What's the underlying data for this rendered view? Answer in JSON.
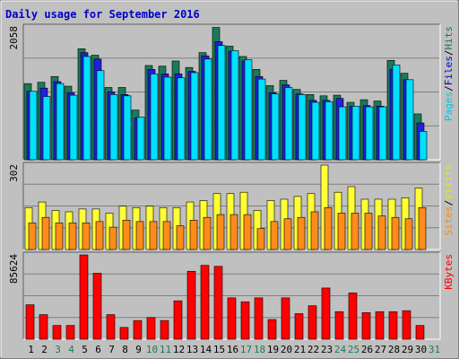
{
  "chart_data": {
    "type": "bar",
    "title": "Daily usage for September 2016",
    "x": [
      "1",
      "2",
      "3",
      "4",
      "5",
      "6",
      "7",
      "8",
      "9",
      "10",
      "11",
      "12",
      "13",
      "14",
      "15",
      "16",
      "17",
      "18",
      "19",
      "20",
      "21",
      "22",
      "23",
      "24",
      "25",
      "26",
      "27",
      "28",
      "29",
      "30",
      "31"
    ],
    "weekend_days": [
      "3",
      "4",
      "10",
      "11",
      "17",
      "18",
      "24",
      "25",
      "31"
    ],
    "panels": [
      {
        "name": "hits-files-pages",
        "scale_label": "2058",
        "ylim": [
          0,
          2058
        ],
        "right_labels": [
          {
            "text": "Pages",
            "color": "#00c8e8"
          },
          {
            "text": "/",
            "color": "#000000"
          },
          {
            "text": "Files",
            "color": "#0000cc"
          },
          {
            "text": "/",
            "color": "#000000"
          },
          {
            "text": "Hits",
            "color": "#1b7a5a"
          }
        ],
        "series": [
          {
            "name": "Hits",
            "color": "#1b7a5a",
            "values": [
              1180,
              1200,
              1290,
              1140,
              1720,
              1620,
              1120,
              1120,
              770,
              1460,
              1450,
              1530,
              1430,
              1660,
              2050,
              1760,
              1600,
              1400,
              1150,
              1230,
              1090,
              1010,
              990,
              1000,
              890,
              930,
              910,
              1540,
              1340,
              710,
              0
            ]
          },
          {
            "name": "Files",
            "color": "#2020e0",
            "values": [
              1060,
              1110,
              1210,
              1040,
              1660,
              1560,
              1050,
              1010,
              650,
              1400,
              1330,
              1330,
              1370,
              1610,
              1830,
              1680,
              1530,
              1290,
              1040,
              1160,
              1020,
              920,
              920,
              950,
              830,
              840,
              830,
              1400,
              1240,
              570,
              0
            ]
          },
          {
            "name": "Pages",
            "color": "#00e0ff",
            "values": [
              1060,
              980,
              1180,
              1000,
              1600,
              1380,
              1010,
              990,
              660,
              1330,
              1280,
              1270,
              1350,
              1560,
              1770,
              1690,
              1550,
              1250,
              1020,
              1120,
              1010,
              890,
              900,
              820,
              830,
              820,
              820,
              1470,
              1240,
              440,
              0
            ]
          }
        ]
      },
      {
        "name": "visits-sites",
        "scale_label": "302",
        "ylim": [
          0,
          302
        ],
        "right_labels": [
          {
            "text": "Sites",
            "color": "#ff8c00"
          },
          {
            "text": "/",
            "color": "#000000"
          },
          {
            "text": "Visits",
            "color": "#e8e800"
          }
        ],
        "series": [
          {
            "name": "Visits",
            "color": "#ffff33",
            "values": [
              150,
              170,
              140,
              135,
              145,
              145,
              130,
              155,
              150,
              155,
              150,
              150,
              170,
              175,
              200,
              200,
              205,
              140,
              175,
              180,
              190,
              200,
              302,
              205,
              225,
              180,
              180,
              180,
              185,
              220,
              0
            ]
          },
          {
            "name": "Sites",
            "color": "#ff8c1a",
            "values": [
              95,
              115,
              95,
              95,
              95,
              100,
              80,
              105,
              100,
              100,
              100,
              85,
              105,
              115,
              125,
              125,
              125,
              75,
              100,
              110,
              115,
              135,
              150,
              130,
              130,
              130,
              120,
              115,
              110,
              150,
              0
            ]
          }
        ]
      },
      {
        "name": "kbytes",
        "scale_label": "85624",
        "ylim": [
          0,
          85624
        ],
        "right_labels": [
          {
            "text": "KBytes",
            "color": "#ff0000"
          }
        ],
        "series": [
          {
            "name": "KBytes",
            "color": "#ff0000",
            "values": [
              35000,
              25000,
              14000,
              14000,
              85624,
              67000,
              25000,
              12000,
              19000,
              22000,
              19000,
              39000,
              69000,
              75000,
              74000,
              42000,
              38000,
              42000,
              20000,
              42000,
              26000,
              34000,
              52000,
              28000,
              47000,
              27000,
              28000,
              28000,
              29000,
              14000,
              0
            ]
          }
        ]
      }
    ]
  }
}
